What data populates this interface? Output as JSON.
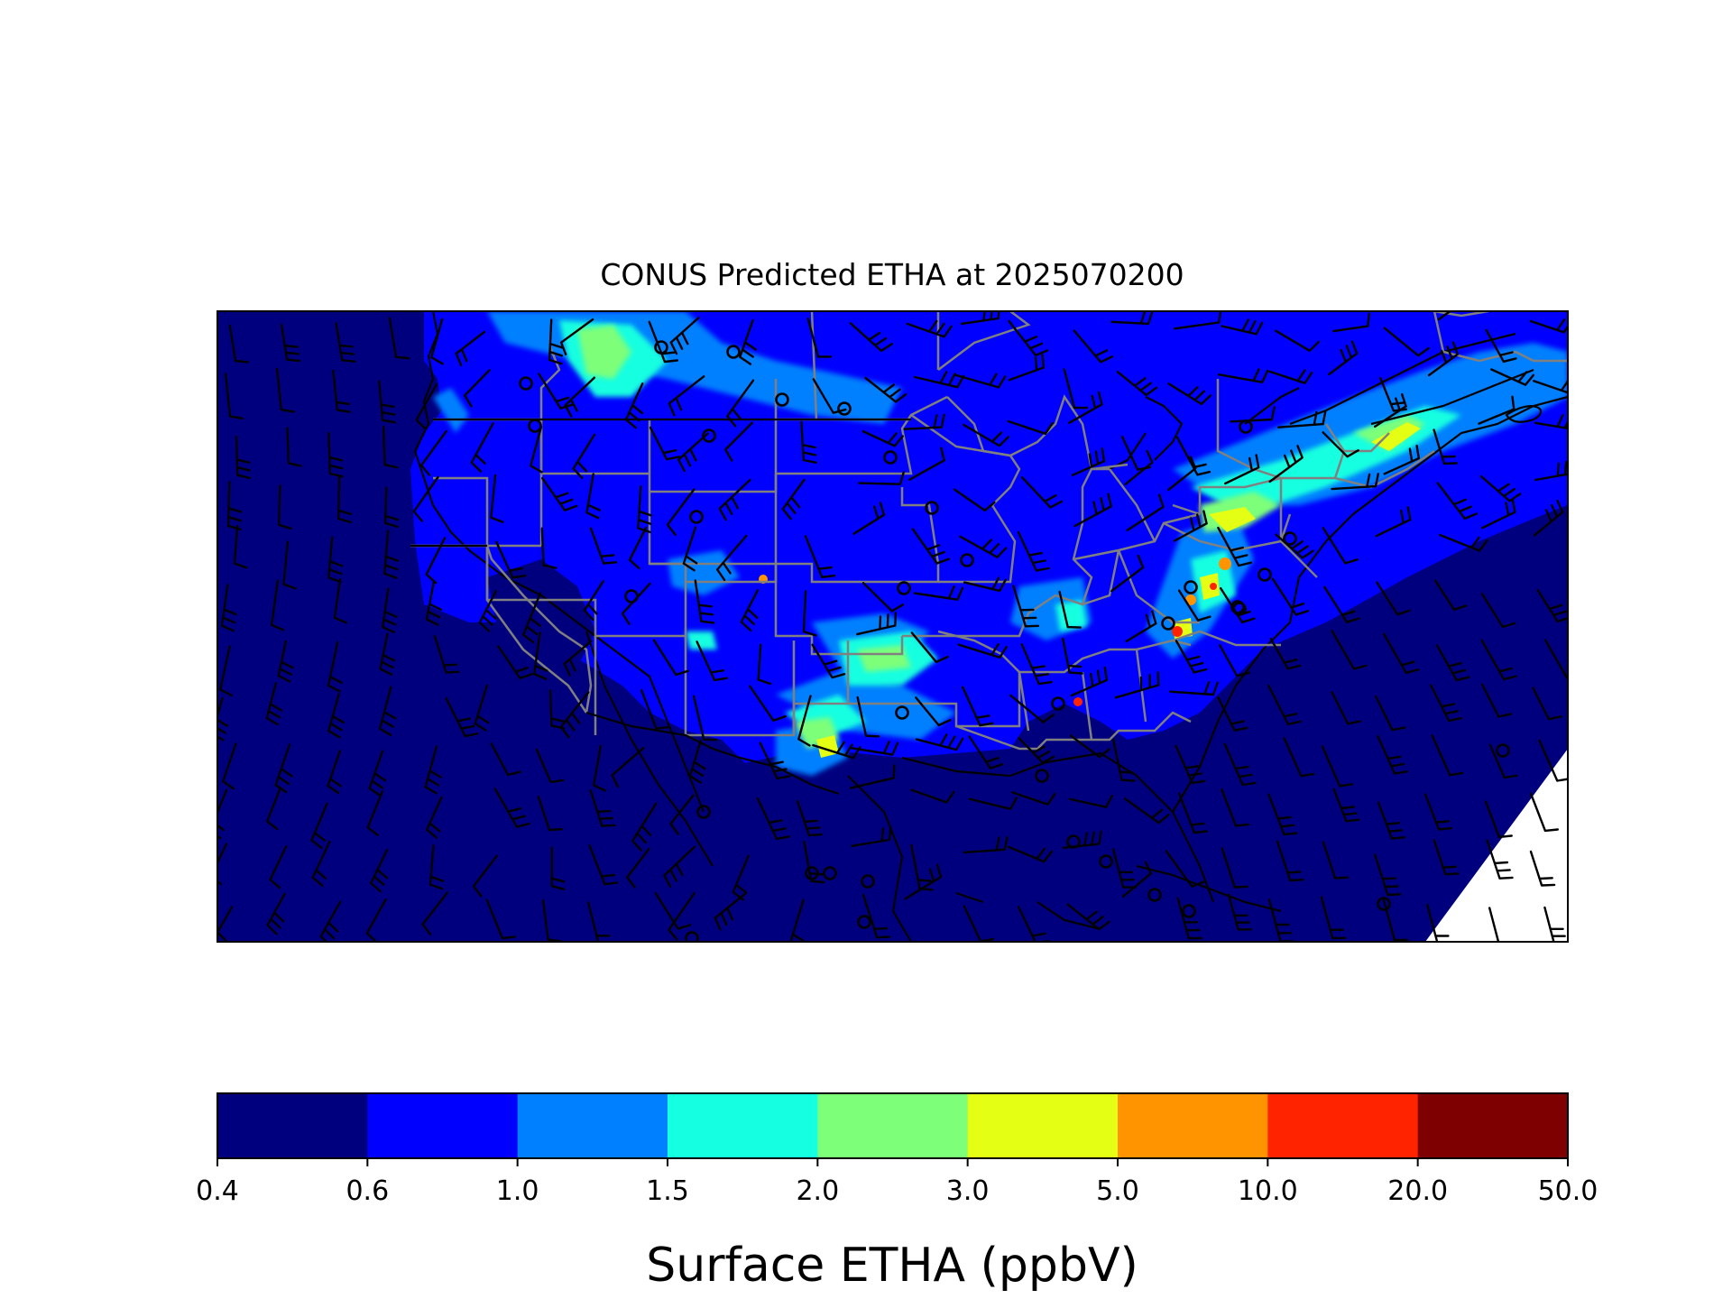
{
  "figure": {
    "title": "CONUS Predicted ETHA at 2025070200"
  },
  "colorbar": {
    "label": "Surface ETHA (ppbV)",
    "ticks": [
      "0.4",
      "0.6",
      "1.0",
      "1.5",
      "2.0",
      "3.0",
      "5.0",
      "10.0",
      "20.0",
      "50.0"
    ],
    "colors": [
      "#00007f",
      "#0000fe",
      "#0080ff",
      "#15ffe1",
      "#7dff7a",
      "#e4ff13",
      "#ff9400",
      "#ff2300",
      "#7f0000"
    ]
  },
  "map": {
    "region": "CONUS",
    "variable": "Surface ETHA",
    "units": "ppbV",
    "overlays": [
      "wind-barbs",
      "state-boundaries",
      "coastlines",
      "calm-wind-circles"
    ]
  }
}
